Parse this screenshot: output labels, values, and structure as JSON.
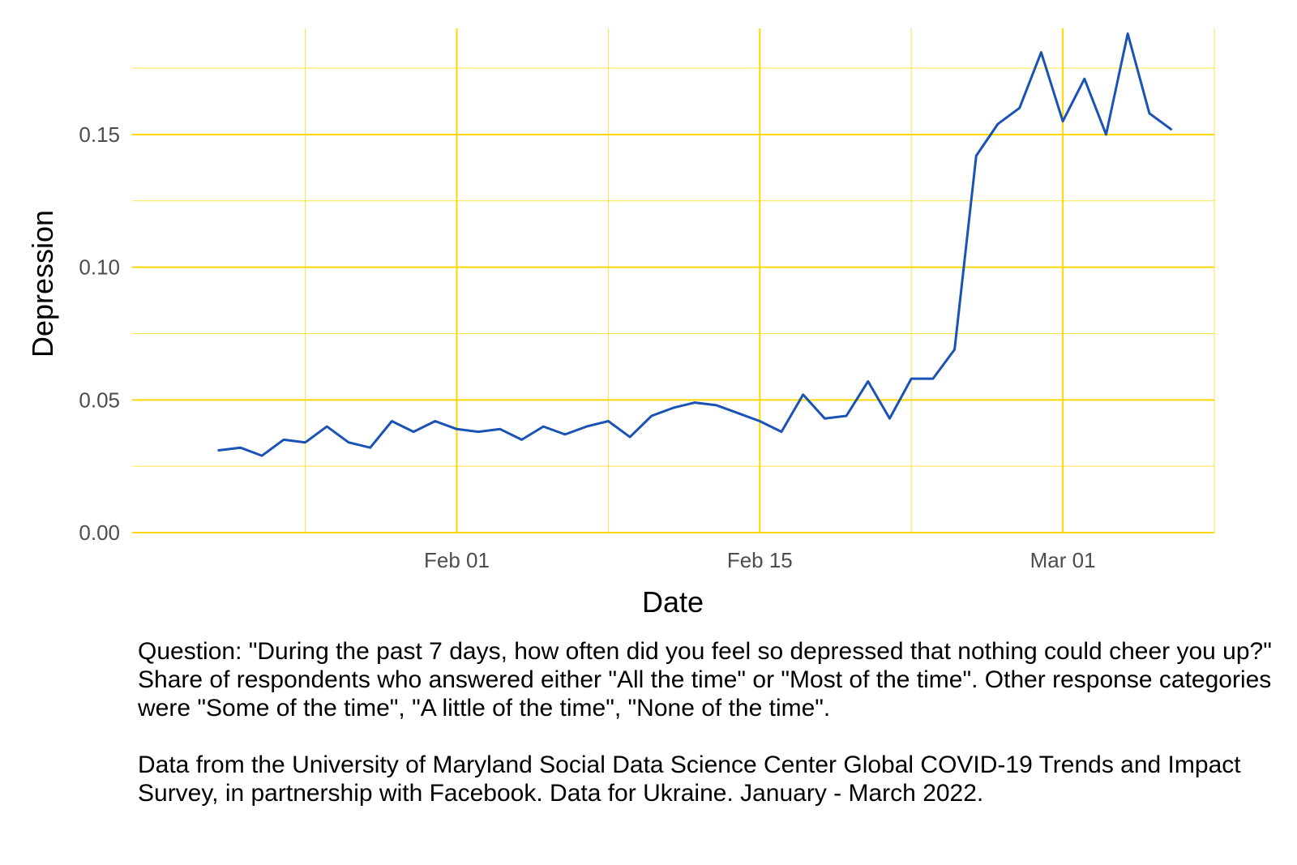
{
  "chart_data": {
    "type": "line",
    "xlabel": "Date",
    "ylabel": "Depression",
    "x_ticks": [
      {
        "date": "2022-02-01",
        "label": "Feb 01"
      },
      {
        "date": "2022-02-15",
        "label": "Feb 15"
      },
      {
        "date": "2022-03-01",
        "label": "Mar 01"
      }
    ],
    "x_minor_ticks": [
      "2022-01-25",
      "2022-02-08",
      "2022-02-22",
      "2022-03-08"
    ],
    "y_ticks": [
      {
        "value": 0.0,
        "label": "0.00"
      },
      {
        "value": 0.05,
        "label": "0.05"
      },
      {
        "value": 0.1,
        "label": "0.10"
      },
      {
        "value": 0.15,
        "label": "0.15"
      }
    ],
    "y_minor_ticks": [
      0.025,
      0.075,
      0.125,
      0.175
    ],
    "xlim": [
      "2022-01-17",
      "2022-03-08"
    ],
    "ylim": [
      0.0,
      0.19
    ],
    "grid": true,
    "colors": {
      "line": "#1a52b5",
      "grid": "#ffd700"
    },
    "series": [
      {
        "x": [
          "2022-01-21",
          "2022-01-22",
          "2022-01-23",
          "2022-01-24",
          "2022-01-25",
          "2022-01-26",
          "2022-01-27",
          "2022-01-28",
          "2022-01-29",
          "2022-01-30",
          "2022-01-31",
          "2022-02-01",
          "2022-02-02",
          "2022-02-03",
          "2022-02-04",
          "2022-02-05",
          "2022-02-06",
          "2022-02-07",
          "2022-02-08",
          "2022-02-09",
          "2022-02-10",
          "2022-02-11",
          "2022-02-12",
          "2022-02-13",
          "2022-02-14",
          "2022-02-15",
          "2022-02-16",
          "2022-02-17",
          "2022-02-18",
          "2022-02-19",
          "2022-02-20",
          "2022-02-21",
          "2022-02-22",
          "2022-02-23",
          "2022-02-24",
          "2022-02-25",
          "2022-02-26",
          "2022-02-27",
          "2022-02-28",
          "2022-03-01",
          "2022-03-02",
          "2022-03-03",
          "2022-03-04",
          "2022-03-05",
          "2022-03-06"
        ],
        "y": [
          0.031,
          0.032,
          0.029,
          0.035,
          0.034,
          0.04,
          0.034,
          0.032,
          0.042,
          0.038,
          0.042,
          0.039,
          0.038,
          0.039,
          0.035,
          0.04,
          0.037,
          0.04,
          0.042,
          0.036,
          0.044,
          0.047,
          0.049,
          0.048,
          0.045,
          0.042,
          0.038,
          0.052,
          0.043,
          0.044,
          0.057,
          0.043,
          0.058,
          0.058,
          0.069,
          0.142,
          0.154,
          0.16,
          0.181,
          0.155,
          0.171,
          0.15,
          0.188,
          0.158,
          0.152
        ]
      }
    ]
  },
  "caption": {
    "question": "Question: \"During the past 7 days, how often did you feel so depressed that nothing could cheer you up?\" Share of respondents who answered either \"All the time\" or \"Most of the time\". Other response categories were \"Some of the time\", \"A little of the time\", \"None of the time\".",
    "source": "Data from the University of Maryland Social Data Science Center Global COVID-19 Trends and Impact Survey, in partnership with Facebook. Data for Ukraine. January - March 2022."
  }
}
